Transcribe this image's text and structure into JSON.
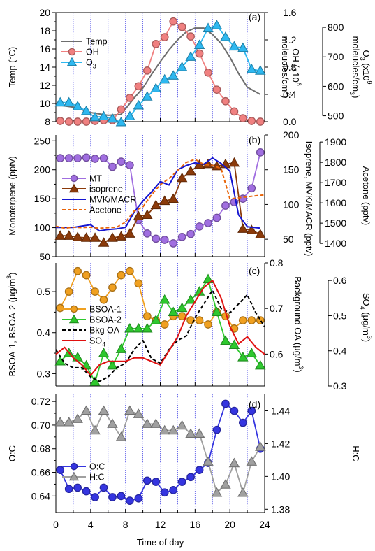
{
  "x_axis": {
    "label": "Time of day",
    "ticks": [
      0,
      4,
      8,
      12,
      16,
      20,
      24
    ],
    "range": [
      0,
      24
    ],
    "vlines": [
      0,
      2,
      4,
      6,
      8,
      10,
      12,
      14,
      16,
      18,
      20,
      22
    ]
  },
  "chart_data": [
    {
      "panel": "(a)",
      "type": "line",
      "axes": {
        "left": {
          "label": "Temp (°C)",
          "label_parts": [
            "Temp (",
            "o",
            "C)"
          ],
          "range": [
            8,
            20
          ],
          "ticks": [
            8,
            10,
            12,
            14,
            16,
            18,
            20
          ]
        },
        "right1": {
          "label": "OH (x10^6 molecules/cm^3)",
          "label_line1_parts": [
            "OH (x10",
            "6"
          ],
          "label_line2_parts": [
            "moleucles/cm",
            "3",
            ")"
          ],
          "range": [
            0,
            1.6
          ],
          "ticks": [
            "0.0",
            "0.4",
            "0.8",
            "1.2",
            "1.6"
          ]
        },
        "right2": {
          "label": "O3 (x10^9 molecules/cm^3)",
          "label_line1_parts": [
            "O",
            "3",
            " (x10",
            "9"
          ],
          "label_line2_parts": [
            "moleucles/cm",
            "3",
            ")"
          ],
          "range": [
            480,
            850
          ],
          "ticks": [
            500,
            600,
            700,
            800
          ]
        }
      },
      "legend": [
        "Temp",
        "OH",
        "O3"
      ],
      "series": [
        {
          "name": "Temp",
          "axis": "left",
          "color": "#6e6e6e",
          "marker": "none",
          "x": [
            0.5,
            2,
            4,
            6,
            7.5,
            9,
            10,
            11,
            12,
            13,
            14,
            15,
            16,
            17,
            18,
            19,
            20,
            21,
            22,
            23.5
          ],
          "y": [
            9.8,
            9.6,
            9.0,
            8.7,
            8.8,
            10.6,
            11.7,
            13.2,
            14.6,
            15.9,
            17.0,
            17.9,
            18.3,
            18.3,
            17.6,
            16.6,
            15.1,
            13.3,
            11.8,
            11.0
          ]
        },
        {
          "name": "OH",
          "axis": "right1",
          "color": "#f08080",
          "marker": "circle",
          "x": [
            0.5,
            1.5,
            2.5,
            3.5,
            4.5,
            5.5,
            6.5,
            7.5,
            8.5,
            9.5,
            10.5,
            11.5,
            12.5,
            13.5,
            14.5,
            15.5,
            16.5,
            17.5,
            18.5,
            19.5,
            20.5,
            21.5,
            22.5,
            23.5
          ],
          "y": [
            0.01,
            0.0,
            0.0,
            0.0,
            0.01,
            0.02,
            0.02,
            0.18,
            0.35,
            0.52,
            0.75,
            1.14,
            1.24,
            1.47,
            1.39,
            1.25,
            1.0,
            0.72,
            0.47,
            0.3,
            0.15,
            0.05,
            0.01,
            0.0
          ]
        },
        {
          "name": "O3",
          "axis": "right2",
          "color": "#2eb8f0",
          "marker": "triangle",
          "x": [
            0.5,
            1.5,
            2.5,
            3.5,
            4.5,
            5.5,
            6.5,
            7.5,
            8.5,
            9.5,
            10.5,
            11.5,
            12.5,
            13.5,
            14.5,
            15.5,
            16.5,
            17.5,
            18.5,
            19.5,
            20.5,
            21.5,
            22.5,
            23.5
          ],
          "y": [
            545,
            545,
            532,
            516,
            495,
            498,
            490,
            478,
            498,
            535,
            565,
            593,
            623,
            636,
            665,
            700,
            740,
            797,
            807,
            767,
            735,
            730,
            658,
            653
          ]
        }
      ]
    },
    {
      "panel": "(b)",
      "type": "line",
      "axes": {
        "left": {
          "label": "Monoterpene (pptv)",
          "range": [
            50,
            260
          ],
          "ticks": [
            50,
            100,
            150,
            200,
            250
          ]
        },
        "right1": {
          "label": "Isoprene, MVK/MACR (pptv)",
          "range": [
            25,
            200
          ],
          "ticks": [
            50,
            100,
            150,
            200
          ]
        },
        "right2": {
          "label": "Acetone (pptv)",
          "range": [
            1335,
            1935
          ],
          "ticks": [
            1400,
            1500,
            1600,
            1700,
            1800,
            1900
          ]
        }
      },
      "legend": [
        "MT",
        "isoprene",
        "MVK/MACR",
        "Acetone"
      ],
      "series": [
        {
          "name": "MT",
          "axis": "left",
          "color": "#a06ee0",
          "marker": "circle",
          "x": [
            0.5,
            1.5,
            2.5,
            3.5,
            4.5,
            5.5,
            6.5,
            7.5,
            8.5,
            9.5,
            10.5,
            11.5,
            12.5,
            13.5,
            14.5,
            15.5,
            16.5,
            17.5,
            18.5,
            19.5,
            20.5,
            21.5,
            22.5,
            23.5
          ],
          "y": [
            220,
            220,
            220,
            221,
            219,
            220,
            205,
            214,
            208,
            113,
            90,
            81,
            79,
            73,
            84,
            89,
            102,
            108,
            117,
            138,
            144,
            150,
            168,
            230
          ]
        },
        {
          "name": "isoprene",
          "axis": "right1",
          "color": "#8b3a0a",
          "marker": "triangle",
          "x": [
            0.5,
            1.5,
            2.5,
            3.5,
            4.5,
            5.5,
            6.5,
            7.5,
            8.5,
            9.5,
            10.5,
            11.5,
            12.5,
            13.5,
            14.5,
            15.5,
            16.5,
            17.5,
            18.5,
            19.5,
            20.5,
            21.5,
            22.5,
            23.5
          ],
          "y": [
            55,
            55,
            53,
            52,
            52,
            45,
            52,
            54,
            58,
            83,
            85,
            99,
            105,
            108,
            138,
            148,
            157,
            158,
            155,
            158,
            160,
            65,
            63,
            57
          ]
        },
        {
          "name": "MVK/MACR",
          "axis": "right1",
          "color": "#1515d0",
          "marker": "none",
          "x": [
            0,
            2,
            3,
            4,
            5,
            6,
            7,
            8,
            9,
            10,
            11,
            12,
            13,
            14,
            15,
            16,
            17,
            18,
            19,
            20,
            21,
            22,
            23.5
          ],
          "y": [
            67,
            67,
            69,
            71,
            62,
            64,
            65,
            67,
            89,
            105,
            118,
            133,
            128,
            150,
            156,
            160,
            158,
            167,
            159,
            148,
            85,
            68,
            66
          ]
        },
        {
          "name": "Acetone",
          "axis": "right2",
          "color": "#e8650a",
          "marker": "none",
          "dash": true,
          "x": [
            0,
            1,
            2,
            3,
            4,
            5,
            6,
            7,
            8,
            9,
            10,
            11,
            12,
            13,
            14,
            15,
            16,
            17,
            18,
            19,
            20,
            21,
            22,
            23,
            24
          ],
          "y": [
            1485,
            1475,
            1480,
            1478,
            1480,
            1475,
            1478,
            1480,
            1505,
            1560,
            1580,
            1640,
            1690,
            1720,
            1760,
            1800,
            1815,
            1790,
            1785,
            1770,
            1620,
            1625,
            1630,
            1635,
            1640
          ]
        }
      ]
    },
    {
      "panel": "(c)",
      "type": "line",
      "axes": {
        "left": {
          "label": "BSOA-1, BSOA-2 (µg/m³)",
          "label_parts": [
            "BSOA-1, BSOA-2 (µg/m",
            "3",
            ")"
          ],
          "range": [
            0.27,
            0.57
          ],
          "ticks": [
            "0.3",
            "0.4",
            "0.5"
          ]
        },
        "right1": {
          "label": "Background OA (µg/m³)",
          "label_parts": [
            "Background OA (µg/m",
            "3",
            ")"
          ],
          "range": [
            0.53,
            0.8
          ],
          "ticks": [
            "0.6",
            "0.7",
            "0.8"
          ]
        },
        "right2": {
          "label": "SO4 (µg/m³)",
          "label_parts": [
            "SO",
            "4",
            " (µg/m",
            "3",
            ")"
          ],
          "range": [
            0.3,
            0.65
          ],
          "ticks": [
            "0.3",
            "0.4",
            "0.5",
            "0.6"
          ]
        }
      },
      "legend": [
        "BSOA-1",
        "BSOA-2",
        "Bkg OA",
        "SO4"
      ],
      "series": [
        {
          "name": "BSOA-1",
          "axis": "left",
          "color": "#f0a020",
          "marker": "circle",
          "x": [
            0.5,
            1.5,
            2.5,
            3.5,
            4.5,
            5.5,
            6.5,
            7.5,
            8.5,
            9.5,
            10.5,
            11.5,
            12.5,
            13.5,
            14.5,
            15.5,
            16.5,
            17.5,
            18.5,
            19.5,
            20.5,
            21.5,
            22.5,
            23.5
          ],
          "y": [
            0.46,
            0.5,
            0.55,
            0.54,
            0.5,
            0.48,
            0.51,
            0.54,
            0.55,
            0.52,
            0.44,
            0.43,
            0.42,
            0.44,
            0.44,
            0.43,
            0.43,
            0.42,
            0.45,
            0.44,
            0.41,
            0.43,
            0.43,
            0.43
          ]
        },
        {
          "name": "BSOA-2",
          "axis": "left",
          "color": "#2ec82e",
          "marker": "triangle",
          "x": [
            0.5,
            1.5,
            2.5,
            3.5,
            4.5,
            5.5,
            6.5,
            7.5,
            8.5,
            9.5,
            10.5,
            11.5,
            12.5,
            13.5,
            14.5,
            15.5,
            16.5,
            17.5,
            18.5,
            19.5,
            20.5,
            21.5,
            22.5,
            23.5
          ],
          "y": [
            0.33,
            0.35,
            0.34,
            0.32,
            0.28,
            0.35,
            0.32,
            0.36,
            0.41,
            0.41,
            0.41,
            0.43,
            0.48,
            0.45,
            0.46,
            0.48,
            0.5,
            0.53,
            0.45,
            0.38,
            0.37,
            0.34,
            0.35,
            0.32
          ]
        },
        {
          "name": "Bkg OA",
          "axis": "right1",
          "color": "#000000",
          "marker": "none",
          "dash": true,
          "x": [
            0,
            1,
            2,
            3,
            4,
            5,
            6,
            7,
            8,
            9,
            10,
            11,
            12,
            13,
            14,
            15,
            16,
            17,
            18,
            19,
            20,
            21,
            22,
            23,
            24
          ],
          "y": [
            0.61,
            0.58,
            0.57,
            0.57,
            0.55,
            0.54,
            0.55,
            0.57,
            0.58,
            0.61,
            0.63,
            0.59,
            0.58,
            0.61,
            0.63,
            0.64,
            0.68,
            0.71,
            0.74,
            0.7,
            0.69,
            0.71,
            0.73,
            0.69,
            0.66
          ]
        },
        {
          "name": "SO4",
          "axis": "right2",
          "color": "#e01010",
          "marker": "none",
          "x": [
            0,
            1,
            2,
            3,
            4,
            5,
            6,
            7,
            8,
            9,
            10,
            11,
            12,
            13,
            14,
            15,
            16,
            17,
            18,
            19,
            20,
            21,
            22,
            23,
            24
          ],
          "y": [
            0.39,
            0.41,
            0.38,
            0.36,
            0.33,
            0.36,
            0.37,
            0.37,
            0.37,
            0.38,
            0.38,
            0.37,
            0.36,
            0.4,
            0.44,
            0.5,
            0.54,
            0.58,
            0.6,
            0.55,
            0.47,
            0.42,
            0.44,
            0.41,
            0.39
          ]
        }
      ]
    },
    {
      "panel": "(d)",
      "type": "line",
      "axes": {
        "left": {
          "label": "O:C",
          "range": [
            0.626,
            0.726
          ],
          "ticks": [
            "0.64",
            "0.66",
            "0.68",
            "0.70",
            "0.72"
          ]
        },
        "right1": {
          "label": "H:C",
          "range": [
            1.378,
            1.45
          ],
          "ticks": [
            "1.38",
            "1.40",
            "1.42",
            "1.44"
          ]
        }
      },
      "legend": [
        "O:C",
        "H:C"
      ],
      "series": [
        {
          "name": "O:C",
          "axis": "left",
          "color": "#3535e0",
          "marker": "circle",
          "x": [
            0.5,
            1.5,
            2.5,
            3.5,
            4.5,
            5.5,
            6.5,
            7.5,
            8.5,
            9.5,
            10.5,
            11.5,
            12.5,
            13.5,
            14.5,
            15.5,
            16.5,
            17.5,
            18.5,
            19.5,
            20.5,
            21.5,
            22.5,
            23.5
          ],
          "y": [
            0.662,
            0.646,
            0.647,
            0.644,
            0.639,
            0.647,
            0.639,
            0.64,
            0.636,
            0.638,
            0.653,
            0.652,
            0.643,
            0.645,
            0.652,
            0.656,
            0.662,
            0.668,
            0.696,
            0.718,
            0.712,
            0.702,
            0.712,
            0.68
          ]
        },
        {
          "name": "H:C",
          "axis": "right1",
          "color": "#a0a0a0",
          "marker": "triangle",
          "x": [
            0.5,
            1.5,
            2.5,
            3.5,
            4.5,
            5.5,
            6.5,
            7.5,
            8.5,
            9.5,
            10.5,
            11.5,
            12.5,
            13.5,
            14.5,
            15.5,
            16.5,
            17.5,
            18.5,
            19.5,
            20.5,
            21.5,
            22.5,
            23.5
          ],
          "y": [
            1.433,
            1.433,
            1.435,
            1.44,
            1.428,
            1.44,
            1.432,
            1.424,
            1.44,
            1.438,
            1.432,
            1.432,
            1.428,
            1.428,
            1.431,
            1.426,
            1.426,
            1.409,
            1.39,
            1.395,
            1.408,
            1.39,
            1.409,
            1.418
          ]
        }
      ]
    }
  ]
}
